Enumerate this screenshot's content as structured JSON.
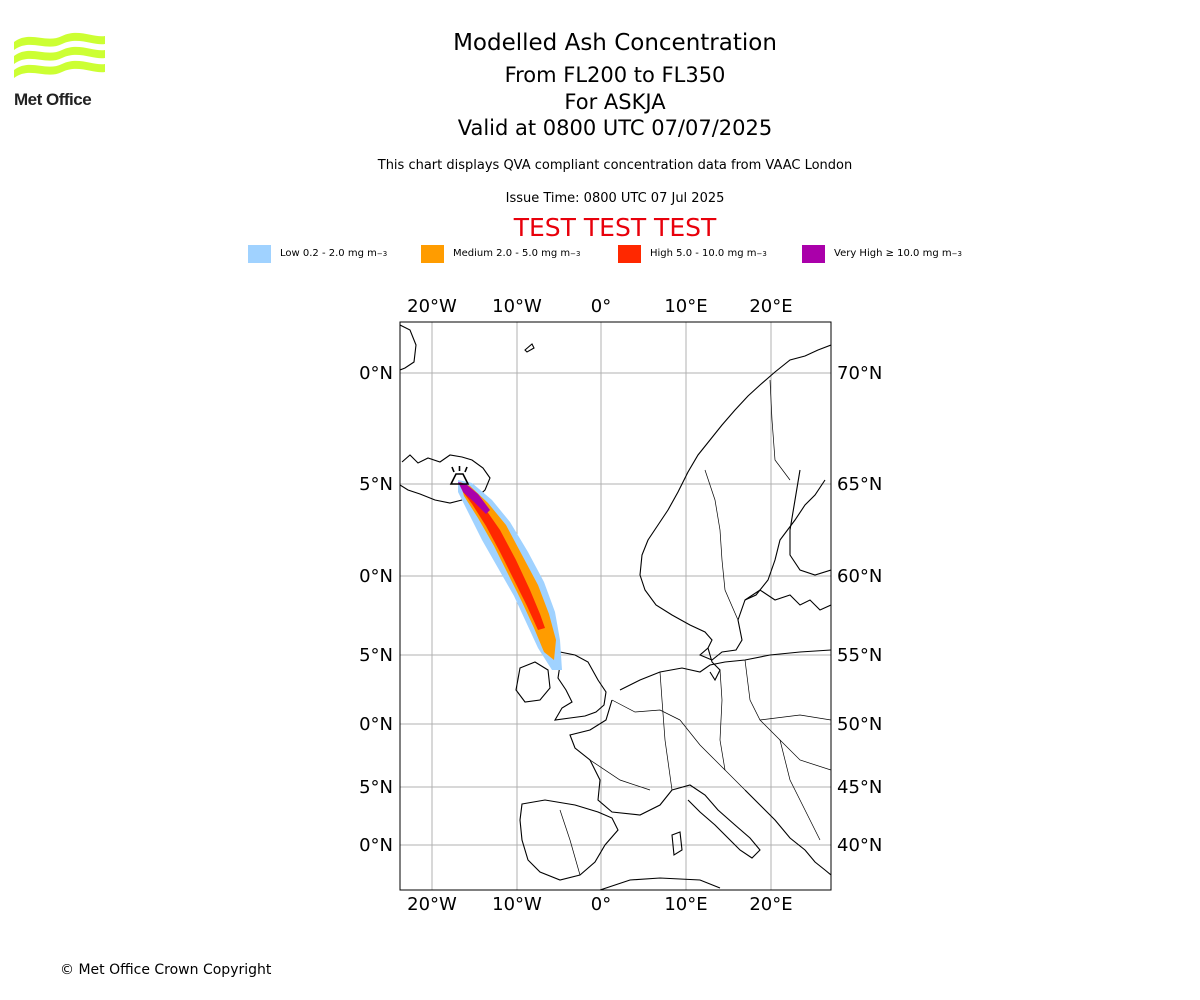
{
  "header": {
    "logo_text": "Met Office",
    "title": "Modelled Ash Concentration",
    "levels": "From FL200 to FL350",
    "volcano": "For ASKJA",
    "valid": "Valid at 0800 UTC 07/07/2025",
    "qva_note": "This chart displays QVA compliant concentration data from VAAC London",
    "issue_time": "Issue Time: 0800 UTC 07 Jul 2025",
    "test_banner": "TEST TEST TEST"
  },
  "legend": [
    {
      "label": "Low 0.2 - 2.0 mg m",
      "unit_exp": "−3",
      "color": "#a0d2ff"
    },
    {
      "label": "Medium 2.0 - 5.0 mg m",
      "unit_exp": "−3",
      "color": "#ff9c00"
    },
    {
      "label": "High 5.0 - 10.0 mg m",
      "unit_exp": "−3",
      "color": "#ff2800"
    },
    {
      "label": "Very High  ≥  10.0 mg m",
      "unit_exp": "−3",
      "color": "#aa00aa"
    }
  ],
  "map": {
    "lon_ticks": [
      "20°W",
      "10°W",
      "0°",
      "10°E",
      "20°E"
    ],
    "lat_ticks": [
      "70°N",
      "65°N",
      "60°N",
      "55°N",
      "50°N",
      "45°N",
      "40°N"
    ],
    "volcano_icon": "volcano-icon"
  },
  "footer": {
    "copyright": "© Met Office Crown Copyright"
  }
}
